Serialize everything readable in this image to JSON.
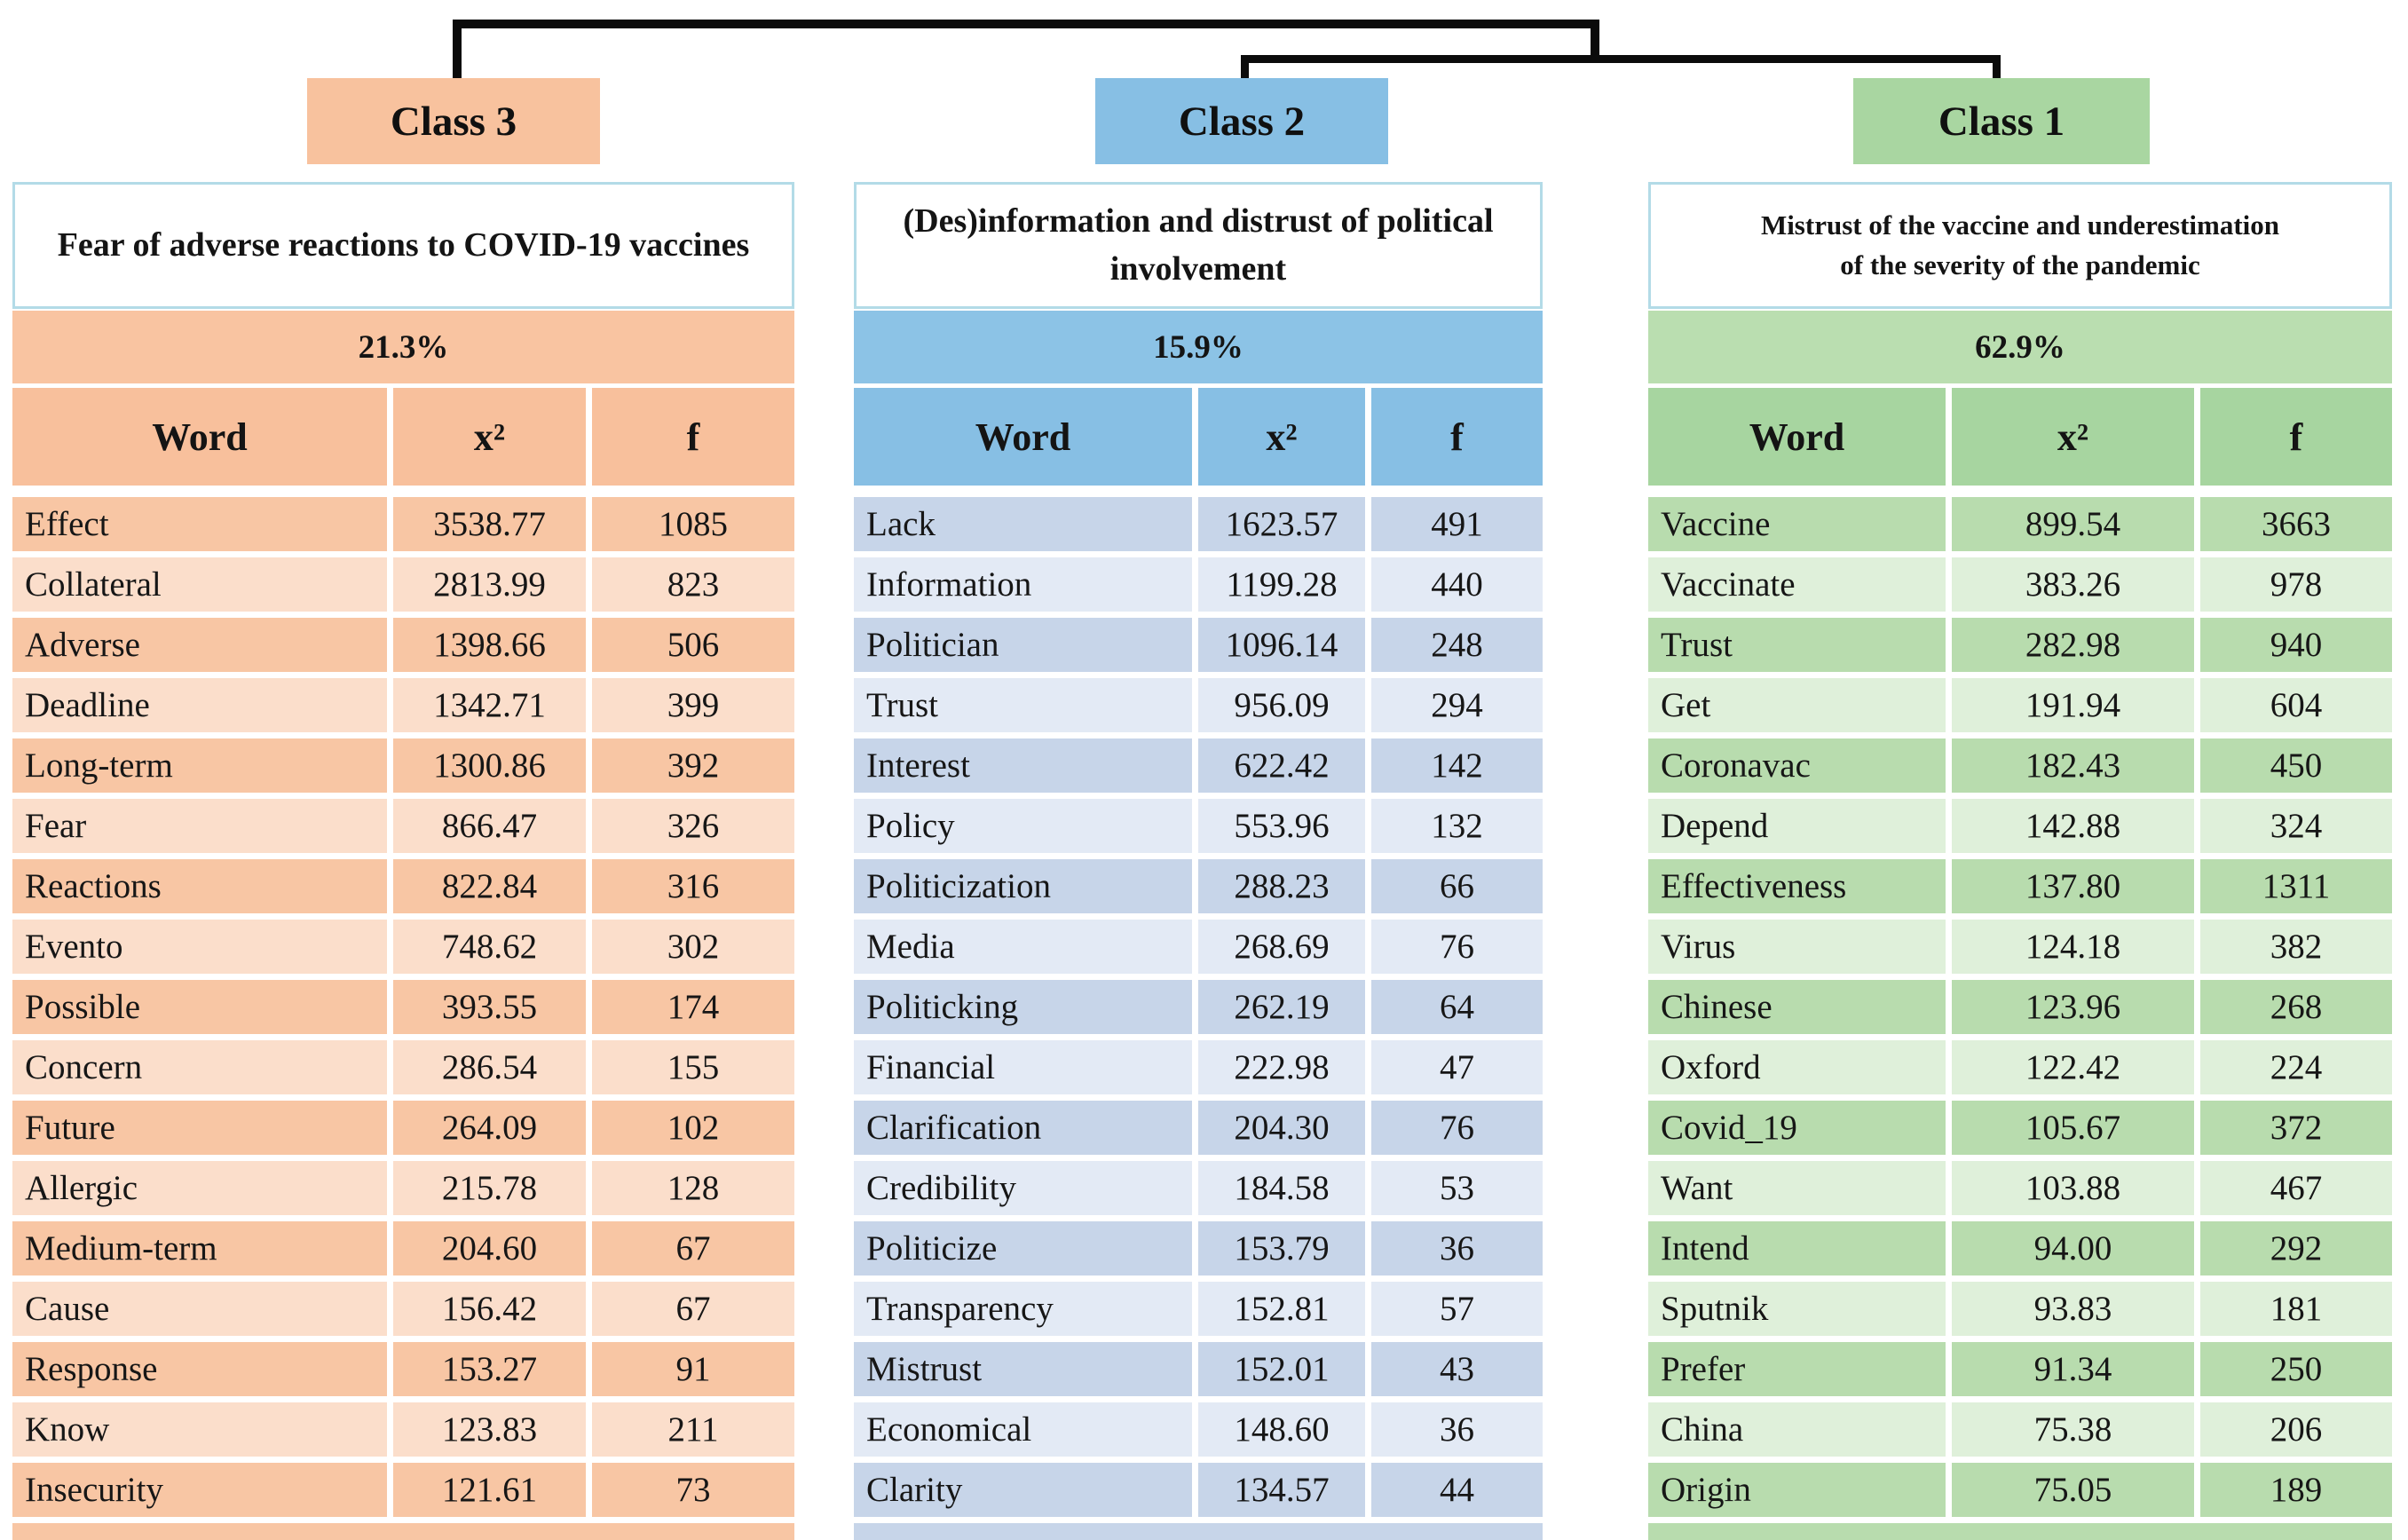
{
  "figure": {
    "kind": "dendrogram-with-word-tables",
    "line_color": "#0b0b0b"
  },
  "columns": [
    {
      "id": "class3",
      "label": "Class 3",
      "title": "Fear of adverse reactions to COVID-19 vaccines",
      "percentage": "21.3%",
      "headers": {
        "word": "Word",
        "chi2": "x²",
        "freq": "f"
      },
      "colors": {
        "label_bg": "#F8C29E",
        "header_bg": "#F8C09C",
        "pct_bg": "#F9C4A1",
        "row_dark": "#F8C6A4",
        "row_light": "#FBDECB"
      },
      "rows": [
        {
          "word": "Effect",
          "chi2": "3538.77",
          "freq": "1085"
        },
        {
          "word": "Collateral",
          "chi2": "2813.99",
          "freq": "823"
        },
        {
          "word": "Adverse",
          "chi2": "1398.66",
          "freq": "506"
        },
        {
          "word": "Deadline",
          "chi2": "1342.71",
          "freq": "399"
        },
        {
          "word": "Long-term",
          "chi2": "1300.86",
          "freq": "392"
        },
        {
          "word": "Fear",
          "chi2": "866.47",
          "freq": "326"
        },
        {
          "word": "Reactions",
          "chi2": "822.84",
          "freq": "316"
        },
        {
          "word": "Evento",
          "chi2": "748.62",
          "freq": "302"
        },
        {
          "word": "Possible",
          "chi2": "393.55",
          "freq": "174"
        },
        {
          "word": "Concern",
          "chi2": "286.54",
          "freq": "155"
        },
        {
          "word": "Future",
          "chi2": "264.09",
          "freq": "102"
        },
        {
          "word": "Allergic",
          "chi2": "215.78",
          "freq": "128"
        },
        {
          "word": "Medium-term",
          "chi2": "204.60",
          "freq": "67"
        },
        {
          "word": "Cause",
          "chi2": "156.42",
          "freq": "67"
        },
        {
          "word": "Response",
          "chi2": "153.27",
          "freq": "91"
        },
        {
          "word": "Know",
          "chi2": "123.83",
          "freq": "211"
        },
        {
          "word": "Insecurity",
          "chi2": "121.61",
          "freq": "73"
        }
      ]
    },
    {
      "id": "class2",
      "label": "Class 2",
      "title": "(Des)information and distrust of political involvement",
      "percentage": "15.9%",
      "headers": {
        "word": "Word",
        "chi2": "x²",
        "freq": "f"
      },
      "colors": {
        "label_bg": "#87BFE4",
        "header_bg": "#87BFE4",
        "pct_bg": "#8CC3E6",
        "row_dark": "#C7D5E9",
        "row_light": "#E3EAF5"
      },
      "rows": [
        {
          "word": "Lack",
          "chi2": "1623.57",
          "freq": "491"
        },
        {
          "word": "Information",
          "chi2": "1199.28",
          "freq": "440"
        },
        {
          "word": "Politician",
          "chi2": "1096.14",
          "freq": "248"
        },
        {
          "word": "Trust",
          "chi2": "956.09",
          "freq": "294"
        },
        {
          "word": "Interest",
          "chi2": "622.42",
          "freq": "142"
        },
        {
          "word": "Policy",
          "chi2": "553.96",
          "freq": "132"
        },
        {
          "word": "Politicization",
          "chi2": "288.23",
          "freq": "66"
        },
        {
          "word": "Media",
          "chi2": "268.69",
          "freq": "76"
        },
        {
          "word": "Politicking",
          "chi2": "262.19",
          "freq": "64"
        },
        {
          "word": "Financial",
          "chi2": "222.98",
          "freq": "47"
        },
        {
          "word": "Clarification",
          "chi2": "204.30",
          "freq": "76"
        },
        {
          "word": "Credibility",
          "chi2": "184.58",
          "freq": "53"
        },
        {
          "word": "Politicize",
          "chi2": "153.79",
          "freq": "36"
        },
        {
          "word": "Transparency",
          "chi2": "152.81",
          "freq": "57"
        },
        {
          "word": "Mistrust",
          "chi2": "152.01",
          "freq": "43"
        },
        {
          "word": "Economical",
          "chi2": "148.60",
          "freq": "36"
        },
        {
          "word": "Clarity",
          "chi2": "134.57",
          "freq": "44"
        }
      ]
    },
    {
      "id": "class1",
      "label": "Class 1",
      "title": "Mistrust of the vaccine and underestimation of the severity of the pandemic",
      "percentage": "62.9%",
      "headers": {
        "word": "Word",
        "chi2": "x²",
        "freq": "f"
      },
      "colors": {
        "label_bg": "#A9D6A1",
        "header_bg": "#A7D5A0",
        "pct_bg": "#BADEB0",
        "row_dark": "#B8DCAE",
        "row_light": "#DFF0DA"
      },
      "rows": [
        {
          "word": "Vaccine",
          "chi2": "899.54",
          "freq": "3663"
        },
        {
          "word": "Vaccinate",
          "chi2": "383.26",
          "freq": "978"
        },
        {
          "word": "Trust",
          "chi2": "282.98",
          "freq": "940"
        },
        {
          "word": "Get",
          "chi2": "191.94",
          "freq": "604"
        },
        {
          "word": "Coronavac",
          "chi2": "182.43",
          "freq": "450"
        },
        {
          "word": "Depend",
          "chi2": "142.88",
          "freq": "324"
        },
        {
          "word": "Effectiveness",
          "chi2": "137.80",
          "freq": "1311"
        },
        {
          "word": "Virus",
          "chi2": "124.18",
          "freq": "382"
        },
        {
          "word": "Chinese",
          "chi2": "123.96",
          "freq": "268"
        },
        {
          "word": "Oxford",
          "chi2": "122.42",
          "freq": "224"
        },
        {
          "word": "Covid_19",
          "chi2": "105.67",
          "freq": "372"
        },
        {
          "word": "Want",
          "chi2": "103.88",
          "freq": "467"
        },
        {
          "word": "Intend",
          "chi2": "94.00",
          "freq": "292"
        },
        {
          "word": "Sputnik",
          "chi2": "93.83",
          "freq": "181"
        },
        {
          "word": "Prefer",
          "chi2": "91.34",
          "freq": "250"
        },
        {
          "word": "China",
          "chi2": "75.38",
          "freq": "206"
        },
        {
          "word": "Origin",
          "chi2": "75.05",
          "freq": "189"
        }
      ]
    }
  ]
}
